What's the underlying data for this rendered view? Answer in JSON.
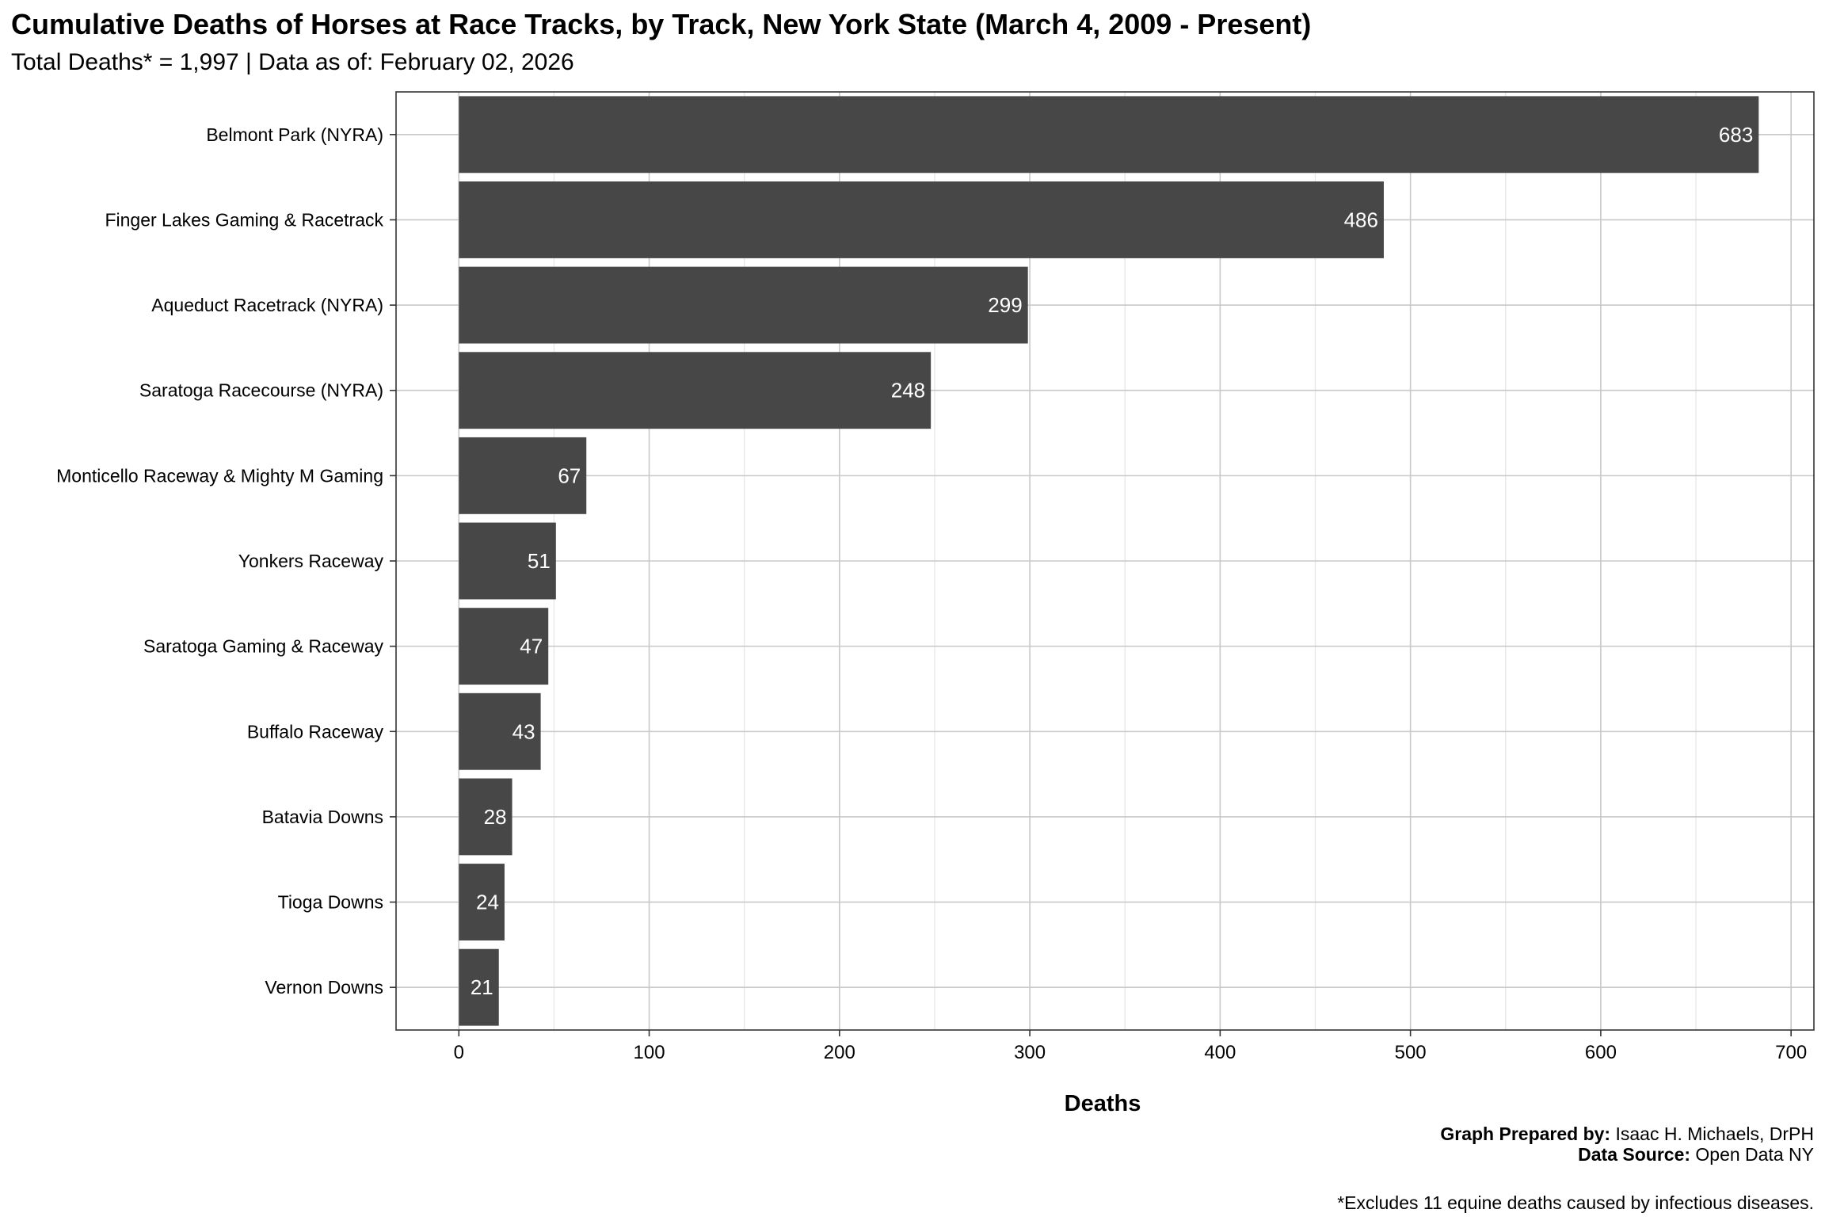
{
  "page": {
    "title": "Cumulative Deaths of Horses at Race Tracks, by Track, New York State (March 4, 2009 - Present)",
    "subtitle": "Total Deaths* = 1,997 | Data as of: February 02, 2026",
    "credit_prepared_label": "Graph Prepared by:",
    "credit_prepared_value": "Isaac H. Michaels, DrPH",
    "credit_source_label": "Data Source:",
    "credit_source_value": "Open Data NY",
    "footnote": "*Excludes 11 equine deaths caused by infectious diseases."
  },
  "colors": {
    "bar": "#474747",
    "bar_label": "#ffffff",
    "grid_major": "#c8c8c8",
    "grid_minor": "#e6e6e6",
    "panel_border": "#333333",
    "axis_text": "#000000"
  },
  "chart_data": {
    "type": "bar",
    "orientation": "horizontal",
    "categories": [
      "Belmont Park (NYRA)",
      "Finger Lakes Gaming & Racetrack",
      "Aqueduct Racetrack (NYRA)",
      "Saratoga Racecourse (NYRA)",
      "Monticello Raceway & Mighty M Gaming",
      "Yonkers Raceway",
      "Saratoga Gaming & Raceway",
      "Buffalo Raceway",
      "Batavia Downs",
      "Tioga Downs",
      "Vernon Downs"
    ],
    "values": [
      683,
      486,
      299,
      248,
      67,
      51,
      47,
      43,
      28,
      24,
      21
    ],
    "xlabel": "Deaths",
    "ylabel": "",
    "xlim": [
      -33,
      712
    ],
    "xticks": [
      0,
      100,
      200,
      300,
      400,
      500,
      600,
      700
    ],
    "grid": true,
    "data_labels": true,
    "legend": "none"
  }
}
